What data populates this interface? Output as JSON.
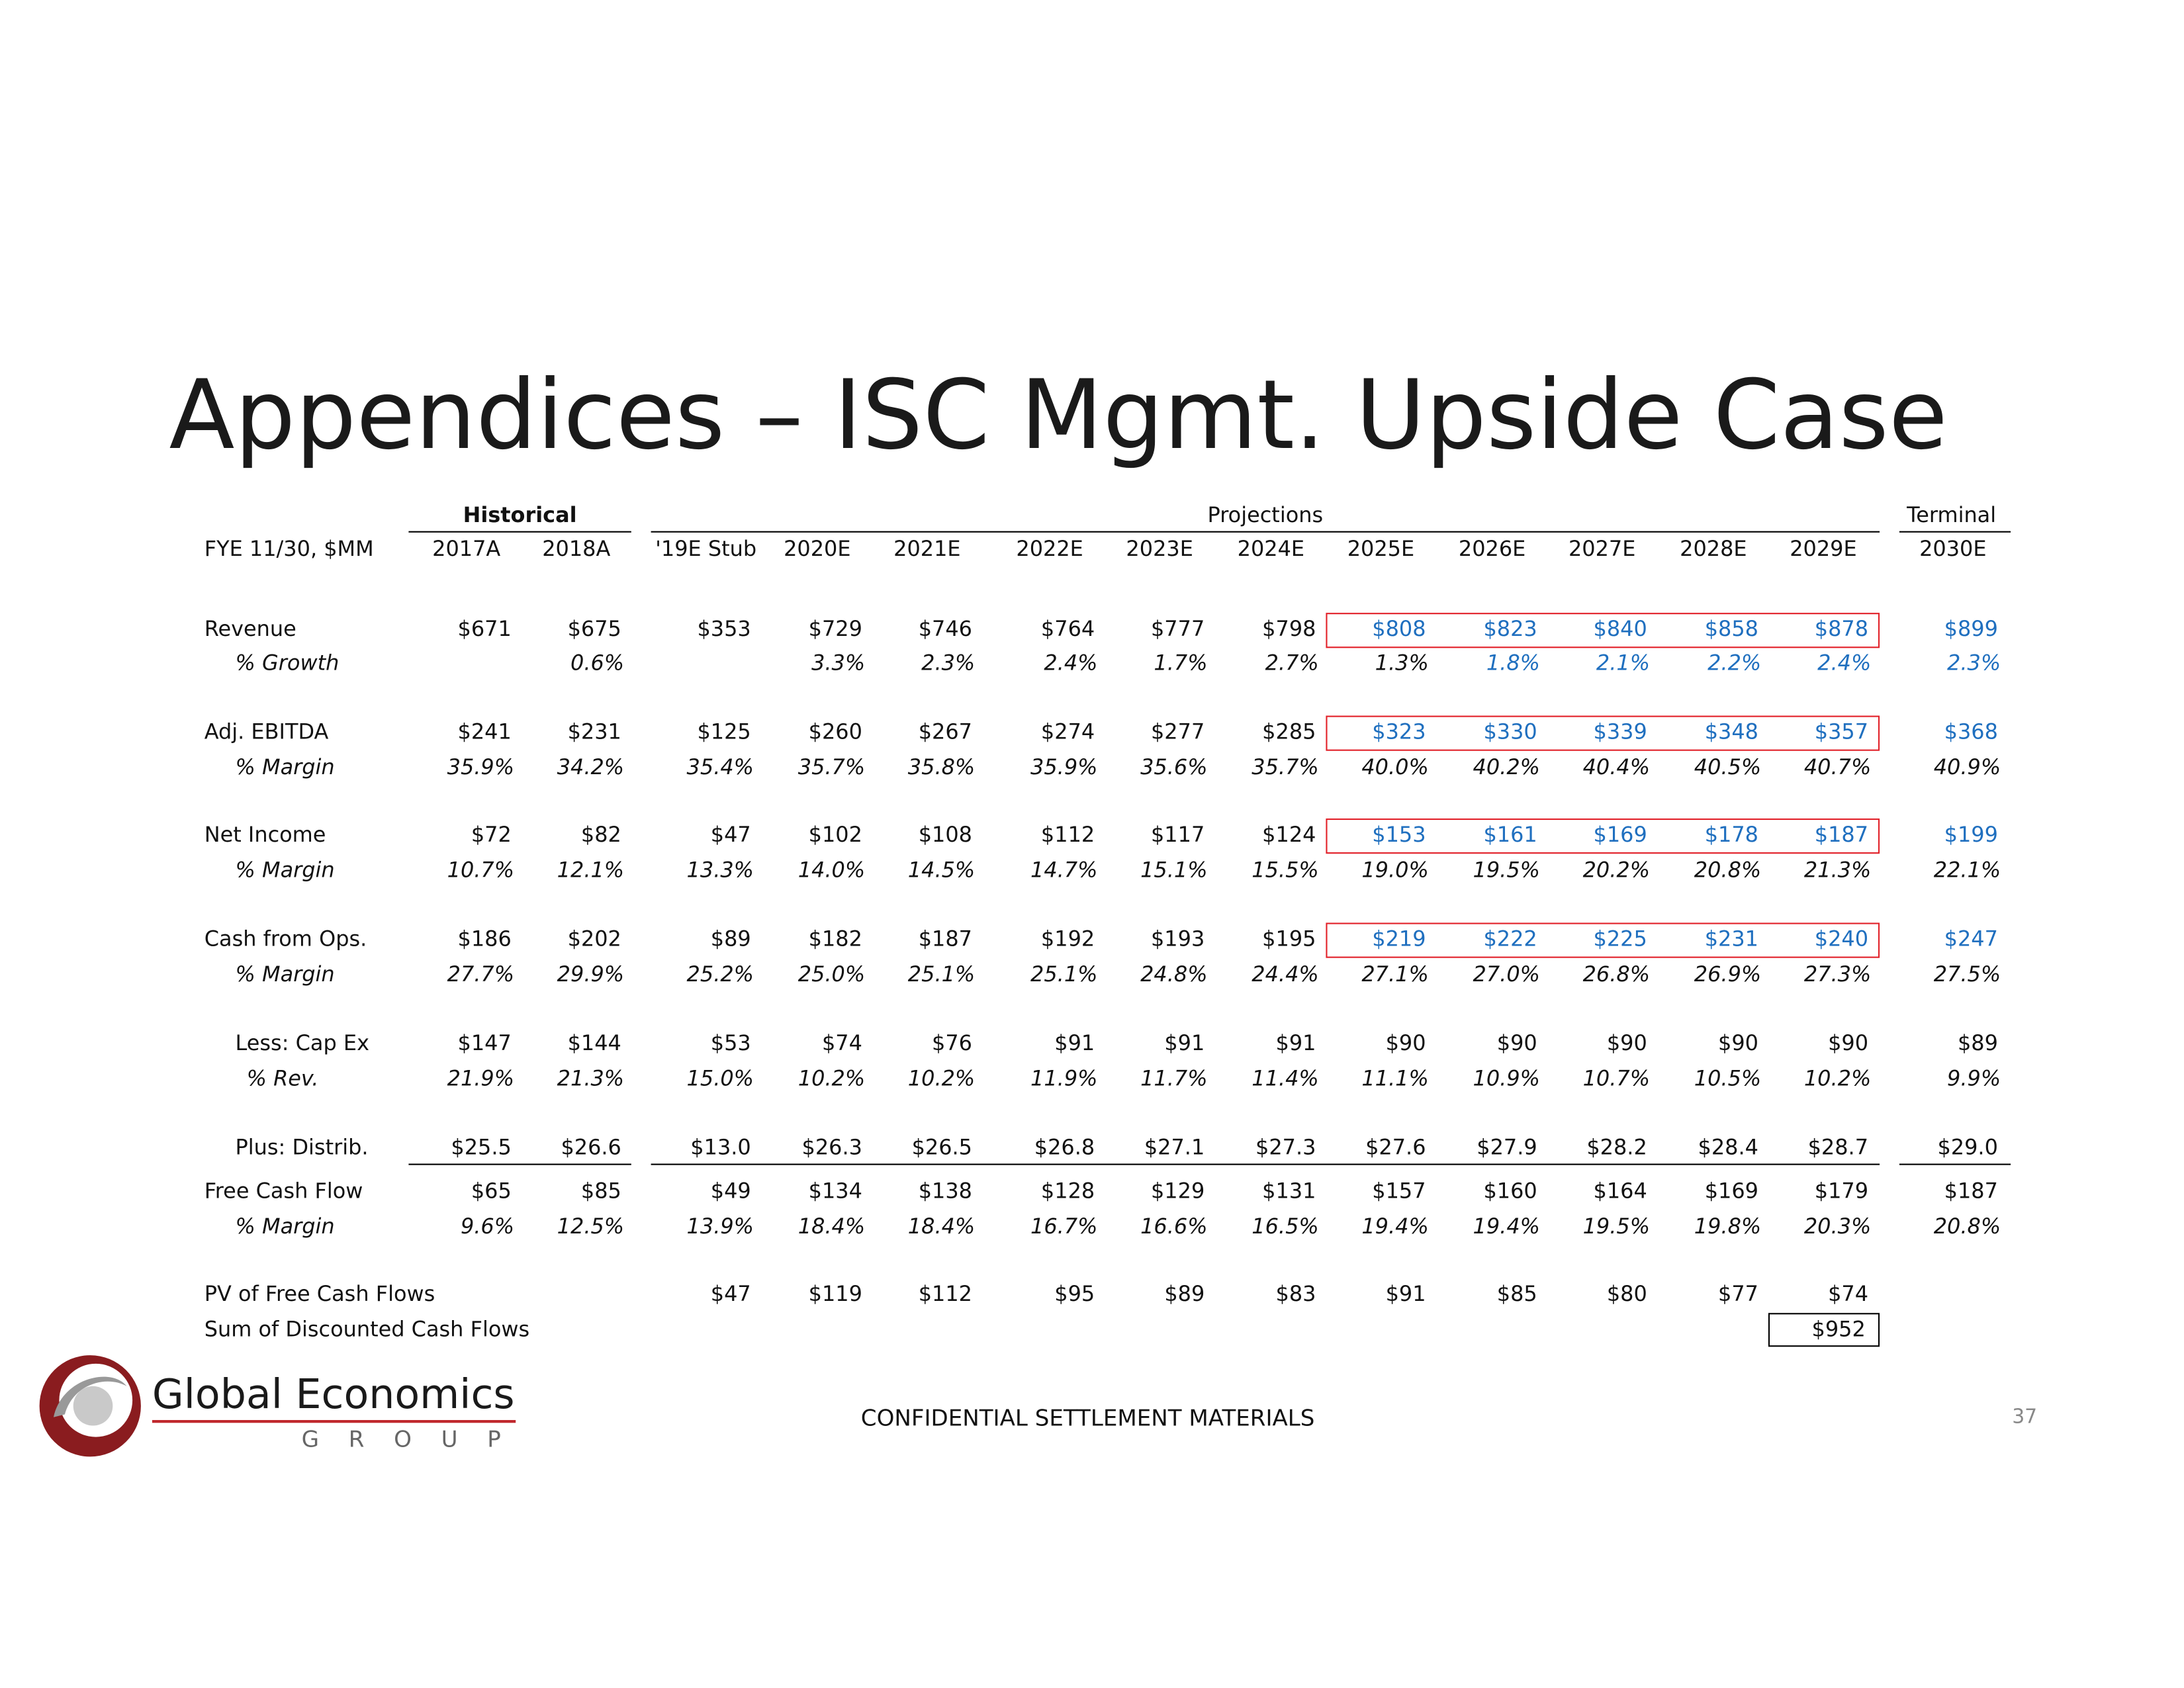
{
  "title": "Appendices – ISC Mgmt. Upside Case",
  "table": {
    "groups": [
      "Historical",
      "Projections",
      "Terminal"
    ],
    "corner": "FYE 11/30, $MM",
    "columns": [
      "2017A",
      "2018A",
      "'19E Stub",
      "2020E",
      "2021E",
      "2022E",
      "2023E",
      "2024E",
      "2025E",
      "2026E",
      "2027E",
      "2028E",
      "2029E",
      "2030E"
    ],
    "rows": [
      {
        "label": "Revenue",
        "cells": [
          "$671",
          "$675",
          "$353",
          "$729",
          "$746",
          "$764",
          "$777",
          "$798",
          "$808",
          "$823",
          "$840",
          "$858",
          "$878",
          "$899"
        ]
      },
      {
        "label": "% Growth",
        "cells": [
          null,
          "0.6%",
          null,
          "3.3%",
          "2.3%",
          "2.4%",
          "1.7%",
          "2.7%",
          "1.3%",
          "1.8%",
          "2.1%",
          "2.2%",
          "2.4%",
          "2.3%"
        ]
      },
      {
        "label": "Adj. EBITDA",
        "cells": [
          "$241",
          "$231",
          "$125",
          "$260",
          "$267",
          "$274",
          "$277",
          "$285",
          "$323",
          "$330",
          "$339",
          "$348",
          "$357",
          "$368"
        ]
      },
      {
        "label": "% Margin",
        "cells": [
          "35.9%",
          "34.2%",
          "35.4%",
          "35.7%",
          "35.8%",
          "35.9%",
          "35.6%",
          "35.7%",
          "40.0%",
          "40.2%",
          "40.4%",
          "40.5%",
          "40.7%",
          "40.9%"
        ]
      },
      {
        "label": "Net Income",
        "cells": [
          "$72",
          "$82",
          "$47",
          "$102",
          "$108",
          "$112",
          "$117",
          "$124",
          "$153",
          "$161",
          "$169",
          "$178",
          "$187",
          "$199"
        ]
      },
      {
        "label": "% Margin",
        "cells": [
          "10.7%",
          "12.1%",
          "13.3%",
          "14.0%",
          "14.5%",
          "14.7%",
          "15.1%",
          "15.5%",
          "19.0%",
          "19.5%",
          "20.2%",
          "20.8%",
          "21.3%",
          "22.1%"
        ]
      },
      {
        "label": "Cash from Ops.",
        "cells": [
          "$186",
          "$202",
          "$89",
          "$182",
          "$187",
          "$192",
          "$193",
          "$195",
          "$219",
          "$222",
          "$225",
          "$231",
          "$240",
          "$247"
        ]
      },
      {
        "label": "% Margin",
        "cells": [
          "27.7%",
          "29.9%",
          "25.2%",
          "25.0%",
          "25.1%",
          "25.1%",
          "24.8%",
          "24.4%",
          "27.1%",
          "27.0%",
          "26.8%",
          "26.9%",
          "27.3%",
          "27.5%"
        ]
      },
      {
        "label": "Less: Cap Ex",
        "cells": [
          "$147",
          "$144",
          "$53",
          "$74",
          "$76",
          "$91",
          "$91",
          "$91",
          "$90",
          "$90",
          "$90",
          "$90",
          "$90",
          "$89"
        ]
      },
      {
        "label": "% Rev.",
        "cells": [
          "21.9%",
          "21.3%",
          "15.0%",
          "10.2%",
          "10.2%",
          "11.9%",
          "11.7%",
          "11.4%",
          "11.1%",
          "10.9%",
          "10.7%",
          "10.5%",
          "10.2%",
          "9.9%"
        ]
      },
      {
        "label": "Plus: Distrib.",
        "cells": [
          "$25.5",
          "$26.6",
          "$13.0",
          "$26.3",
          "$26.5",
          "$26.8",
          "$27.1",
          "$27.3",
          "$27.6",
          "$27.9",
          "$28.2",
          "$28.4",
          "$28.7",
          "$29.0"
        ]
      },
      {
        "label": "Free Cash Flow",
        "cells": [
          "$65",
          "$85",
          "$49",
          "$134",
          "$138",
          "$128",
          "$129",
          "$131",
          "$157",
          "$160",
          "$164",
          "$169",
          "$179",
          "$187"
        ]
      },
      {
        "label": "% Margin",
        "cells": [
          "9.6%",
          "12.5%",
          "13.9%",
          "18.4%",
          "18.4%",
          "16.7%",
          "16.6%",
          "16.5%",
          "19.4%",
          "19.4%",
          "19.5%",
          "19.8%",
          "20.3%",
          "20.8%"
        ]
      },
      {
        "label": "PV of Free Cash Flows",
        "cells": [
          null,
          null,
          "$47",
          "$119",
          "$112",
          "$95",
          "$89",
          "$83",
          "$91",
          "$85",
          "$80",
          "$77",
          "$74",
          null
        ]
      }
    ],
    "sum": {
      "label": "Sum of Discounted Cash Flows",
      "value": "$952"
    }
  },
  "footer": {
    "confidential": "CONFIDENTIAL SETTLEMENT MATERIALS",
    "page": "37"
  },
  "logo": {
    "name": "Global Economics",
    "sub": "GROUP"
  }
}
